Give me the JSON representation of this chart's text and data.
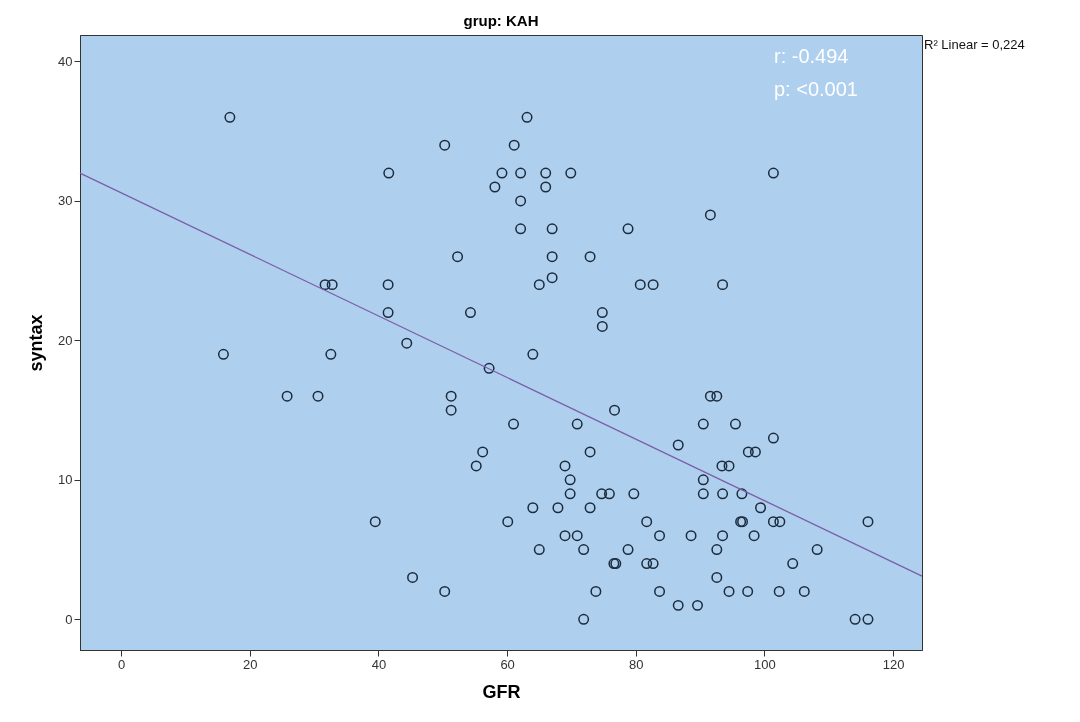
{
  "chart_data": {
    "type": "scatter",
    "title": "grup: KAH",
    "xlabel": "GFR",
    "ylabel": "syntax",
    "xlim": [
      -6.4,
      124.5
    ],
    "ylim": [
      -2.2,
      41.9
    ],
    "xticks": [
      0,
      20,
      40,
      60,
      80,
      100,
      120
    ],
    "yticks": [
      0,
      10,
      20,
      30,
      40
    ],
    "annotations": [
      "r: -0.494",
      "p: <0.001",
      "R² Linear = 0,224"
    ],
    "series": [
      {
        "color": "#1c2b3c",
        "marker": "circle",
        "x": [
          16.9,
          63.1,
          50.3,
          61.1,
          41.6,
          59.2,
          62.1,
          66.0,
          69.9,
          101.4,
          58.1,
          66.0,
          62.1,
          91.6,
          62.1,
          67.0,
          78.8,
          52.3,
          67.0,
          72.9,
          67.0,
          65.0,
          41.5,
          80.7,
          82.7,
          93.5,
          31.7,
          32.8,
          41.5,
          54.3,
          74.8,
          74.8,
          44.4,
          64.0,
          15.9,
          32.6,
          57.2,
          25.8,
          30.6,
          51.3,
          91.6,
          92.6,
          51.3,
          76.7,
          61.0,
          70.9,
          90.5,
          95.5,
          101.4,
          86.6,
          56.2,
          72.9,
          97.5,
          98.6,
          55.2,
          69.0,
          93.4,
          94.5,
          69.8,
          90.5,
          69.8,
          74.7,
          75.9,
          79.7,
          90.5,
          93.5,
          96.5,
          64.0,
          67.9,
          72.9,
          99.4,
          39.5,
          60.1,
          81.7,
          96.3,
          96.6,
          101.4,
          102.4,
          116.1,
          69.0,
          70.9,
          83.7,
          88.6,
          93.5,
          98.4,
          65.0,
          71.9,
          78.8,
          92.6,
          108.2,
          76.6,
          76.9,
          81.7,
          82.7,
          104.4,
          45.3,
          92.6,
          50.3,
          73.8,
          83.7,
          94.5,
          97.4,
          102.3,
          106.2,
          86.6,
          89.6,
          71.9,
          114.1,
          116.1
        ],
        "values": [
          36,
          36,
          34,
          34,
          32,
          32,
          32,
          32,
          32,
          32,
          31,
          31,
          30,
          29,
          28,
          28,
          28,
          26,
          26,
          26,
          24.5,
          24,
          24,
          24,
          24,
          24,
          24,
          24,
          22,
          22,
          22,
          21,
          19.8,
          19,
          19,
          19,
          18,
          16,
          16,
          16,
          16,
          16,
          15,
          15,
          14,
          14,
          14,
          14,
          13,
          12.5,
          12,
          12,
          12,
          12,
          11,
          11,
          11,
          11,
          10,
          10,
          9,
          9,
          9,
          9,
          9,
          9,
          9,
          8,
          8,
          8,
          8,
          7,
          7,
          7,
          7,
          7,
          7,
          7,
          7,
          6,
          6,
          6,
          6,
          6,
          6,
          5,
          5,
          5,
          5,
          5,
          4,
          4,
          4,
          4,
          4,
          3,
          3,
          2,
          2,
          2,
          2,
          2,
          2,
          2,
          1,
          1,
          0,
          0,
          0
        ]
      },
      {
        "type": "line",
        "color": "#7b5ea7",
        "x": [
          -6.4,
          124.5
        ],
        "values": [
          32.0,
          3.1
        ]
      }
    ]
  }
}
